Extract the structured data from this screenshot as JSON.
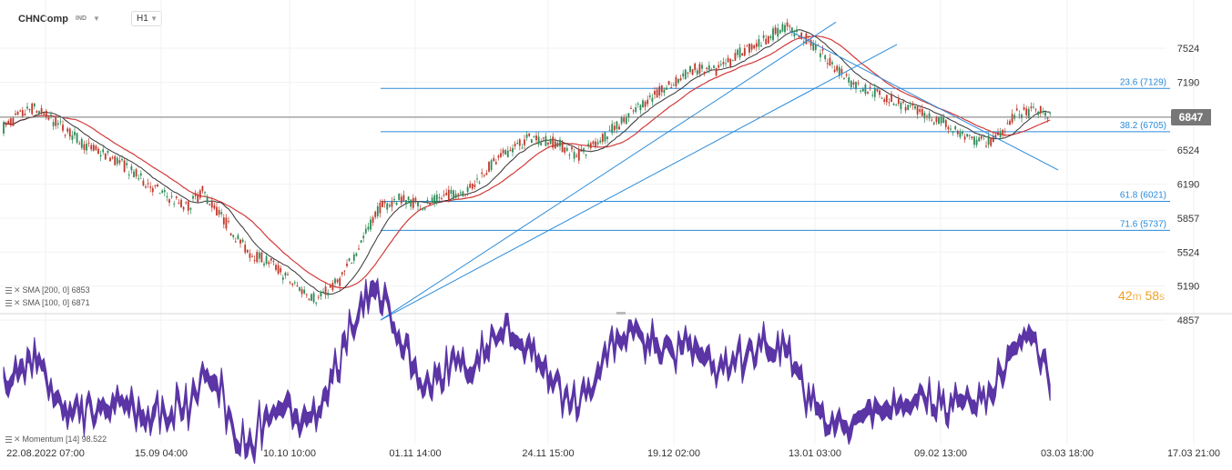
{
  "header": {
    "symbol": "CHNComp",
    "exchange": "IND",
    "timeframe": "H1"
  },
  "indicators": [
    {
      "label": "SMA [200, 0] 6853"
    },
    {
      "label": "SMA [100, 0] 6871"
    },
    {
      "label": "Momentum [14] 98.522"
    }
  ],
  "timer": {
    "minutes": "42",
    "min_unit": "m",
    "seconds": "58",
    "sec_unit": "s"
  },
  "last_price": "6847",
  "colors": {
    "trend": "#2a8bd9",
    "fib": "#2a8bd9",
    "sma200": "#d33a3a",
    "sma100": "#333333",
    "momentum": "#5b35a5",
    "up": "#2e8b57",
    "down": "#c0392b",
    "last": "#777777"
  },
  "chart_data": [
    {
      "type": "candlestick",
      "title": "CHNComp H1",
      "y_ticks": [
        7524,
        7190,
        6524,
        6190,
        5857,
        5524,
        5190,
        4857
      ],
      "x_ticks": [
        "22.08.2022 07:00",
        "15.09 04:00",
        "10.10 10:00",
        "01.11 14:00",
        "24.11 15:00",
        "19.12 02:00",
        "13.01 03:00",
        "09.02 13:00",
        "03.03 18:00",
        "17.03 21:00"
      ],
      "ylim": [
        4830,
        7800
      ],
      "price_path": [
        [
          0,
          6740
        ],
        [
          0.02,
          6850
        ],
        [
          0.04,
          6940
        ],
        [
          0.07,
          6790
        ],
        [
          0.11,
          6560
        ],
        [
          0.15,
          6420
        ],
        [
          0.18,
          6240
        ],
        [
          0.21,
          6090
        ],
        [
          0.24,
          5960
        ],
        [
          0.26,
          6120
        ],
        [
          0.29,
          5820
        ],
        [
          0.32,
          5520
        ],
        [
          0.35,
          5420
        ],
        [
          0.38,
          5200
        ],
        [
          0.41,
          5060
        ],
        [
          0.44,
          5250
        ],
        [
          0.46,
          5520
        ],
        [
          0.49,
          5950
        ],
        [
          0.52,
          6050
        ],
        [
          0.55,
          5980
        ],
        [
          0.58,
          6080
        ],
        [
          0.61,
          6150
        ],
        [
          0.63,
          6330
        ],
        [
          0.66,
          6520
        ],
        [
          0.69,
          6650
        ],
        [
          0.72,
          6600
        ],
        [
          0.75,
          6470
        ],
        [
          0.78,
          6640
        ],
        [
          0.81,
          6820
        ],
        [
          0.84,
          7020
        ],
        [
          0.87,
          7150
        ],
        [
          0.9,
          7320
        ],
        [
          0.93,
          7290
        ],
        [
          0.96,
          7470
        ],
        [
          0.99,
          7590
        ],
        [
          1.02,
          7740
        ],
        [
          1.05,
          7600
        ],
        [
          1.08,
          7380
        ],
        [
          1.11,
          7170
        ],
        [
          1.14,
          7080
        ],
        [
          1.17,
          6980
        ],
        [
          1.2,
          6870
        ],
        [
          1.23,
          6780
        ],
        [
          1.26,
          6620
        ],
        [
          1.29,
          6610
        ],
        [
          1.32,
          6870
        ],
        [
          1.35,
          6910
        ],
        [
          1.37,
          6847
        ]
      ],
      "fibonacci": [
        {
          "label": "23.6 (7129)",
          "value": 7129
        },
        {
          "label": "38.2 (6705)",
          "value": 6705
        },
        {
          "label": "61.8 (6021)",
          "value": 6021
        },
        {
          "label": "71.6 (5737)",
          "value": 5737
        }
      ],
      "trendlines": [
        {
          "from": [
            4857,
            "01.11"
          ],
          "to": [
            7780,
            "13.01"
          ]
        },
        {
          "from": [
            4857,
            "01.11"
          ],
          "to": [
            7560,
            "13.01"
          ]
        },
        {
          "from": [
            7690,
            "13.01"
          ],
          "to": [
            6330,
            "03.03"
          ]
        }
      ],
      "last_value": 6847,
      "series": [
        {
          "name": "SMA 200",
          "last": 6853
        },
        {
          "name": "SMA 100",
          "last": 6871
        }
      ]
    },
    {
      "type": "line",
      "title": "Momentum [14]",
      "last_value": 98.522
    }
  ]
}
